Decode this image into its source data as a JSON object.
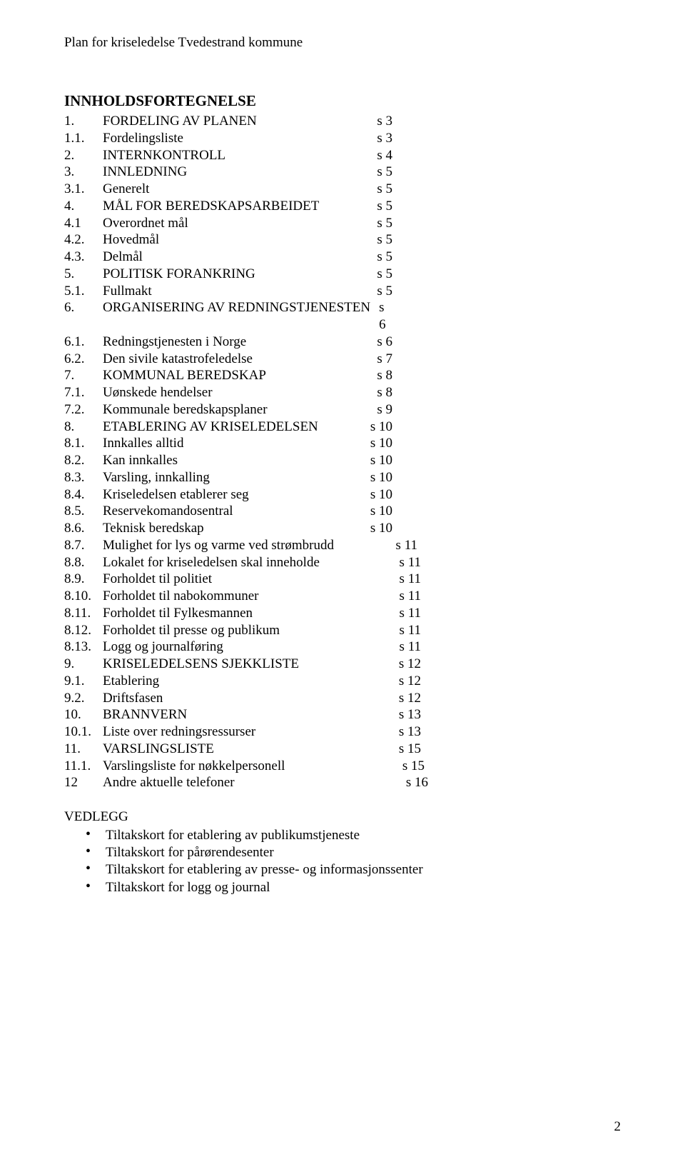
{
  "header": {
    "title": "Plan for kriseledelse Tvedestrand kommune"
  },
  "heading": "INNHOLDSFORTEGNELSE",
  "toc": [
    {
      "num": "1.",
      "label": "FORDELING AV PLANEN",
      "page": "s  3",
      "col": "a"
    },
    {
      "num": "1.1.",
      "label": "Fordelingsliste",
      "page": "s  3",
      "col": "a"
    },
    {
      "num": "2.",
      "label": "INTERNKONTROLL",
      "page": "s  4",
      "col": "a"
    },
    {
      "num": "3.",
      "label": "INNLEDNING",
      "page": "s  5",
      "col": "a"
    },
    {
      "num": "3.1.",
      "label": "Generelt",
      "page": "s  5",
      "col": "a"
    },
    {
      "num": "4.",
      "label": "MÅL FOR BEREDSKAPSARBEIDET",
      "page": "s  5",
      "col": "a"
    },
    {
      "num": "4.1",
      "label": "Overordnet mål",
      "page": "s  5",
      "col": "a"
    },
    {
      "num": "4.2.",
      "label": "Hovedmål",
      "page": "s  5",
      "col": "a"
    },
    {
      "num": "4.3.",
      "label": "Delmål",
      "page": "s  5",
      "col": "a"
    },
    {
      "num": "5.",
      "label": "POLITISK FORANKRING",
      "page": "s  5",
      "col": "a"
    },
    {
      "num": "5.1.",
      "label": "Fullmakt",
      "page": "s  5",
      "col": "a"
    },
    {
      "num": "6.",
      "label": "ORGANISERING AV REDNINGSTJENESTEN",
      "page": "s  6",
      "col": "a"
    },
    {
      "num": "6.1.",
      "label": "Redningstjenesten i Norge",
      "page": "s  6",
      "col": "a"
    },
    {
      "num": "6.2.",
      "label": "Den sivile katastrofeledelse",
      "page": "s  7",
      "col": "a"
    },
    {
      "num": "7.",
      "label": "KOMMUNAL BEREDSKAP",
      "page": "s  8",
      "col": "a"
    },
    {
      "num": "7.1.",
      "label": "Uønskede hendelser",
      "page": "s  8",
      "col": "a"
    },
    {
      "num": "7.2.",
      "label": "Kommunale beredskapsplaner",
      "page": "s  9",
      "col": "a"
    },
    {
      "num": "8.",
      "label": "ETABLERING AV KRISELEDELSEN",
      "page": "s 10",
      "col": "a"
    },
    {
      "num": "8.1.",
      "label": "Innkalles alltid",
      "page": "s 10",
      "col": "a"
    },
    {
      "num": "8.2.",
      "label": "Kan innkalles",
      "page": "s 10",
      "col": "a"
    },
    {
      "num": "8.3.",
      "label": "Varsling, innkalling",
      "page": "s 10",
      "col": "a"
    },
    {
      "num": "8.4.",
      "label": "Kriseledelsen etablerer seg",
      "page": "s 10",
      "col": "a"
    },
    {
      "num": "8.5.",
      "label": "Reservekomandosentral",
      "page": "s 10",
      "col": "a"
    },
    {
      "num": "8.6.",
      "label": "Teknisk beredskap",
      "page": "s 10",
      "col": "a"
    },
    {
      "num": "8.7.",
      "label": "Mulighet for lys og varme ved strømbrudd",
      "page": "s 11",
      "col": "b"
    },
    {
      "num": "8.8.",
      "label": "Lokalet for kriseledelsen skal inneholde",
      "page": "s 11",
      "col": "c"
    },
    {
      "num": "8.9.",
      "label": "Forholdet til politiet",
      "page": "s 11",
      "col": "c"
    },
    {
      "num": "8.10.",
      "label": "Forholdet til nabokommuner",
      "page": "s 11",
      "col": "c"
    },
    {
      "num": "8.11.",
      "label": "Forholdet til Fylkesmannen",
      "page": "s 11",
      "col": "c"
    },
    {
      "num": "8.12.",
      "label": "Forholdet til presse og publikum",
      "page": "s 11",
      "col": "c"
    },
    {
      "num": "8.13.",
      "label": "Logg og journalføring",
      "page": "s 11",
      "col": "c"
    },
    {
      "num": "9.",
      "label": "KRISELEDELSENS SJEKKLISTE",
      "page": "s 12",
      "col": "c"
    },
    {
      "num": "9.1.",
      "label": "Etablering",
      "page": "s 12",
      "col": "c"
    },
    {
      "num": "9.2.",
      "label": "Driftsfasen",
      "page": "s 12",
      "col": "c"
    },
    {
      "num": "10.",
      "label": "BRANNVERN",
      "page": "s 13",
      "col": "c"
    },
    {
      "num": "10.1.",
      "label": "Liste over redningsressurser",
      "page": "s 13",
      "col": "c"
    },
    {
      "num": "11.",
      "label": "VARSLINGSLISTE",
      "page": "s 15",
      "col": "c"
    },
    {
      "num": "11.1.",
      "label": "Varslingsliste for nøkkelpersonell",
      "page": "s 15",
      "col": "d"
    },
    {
      "num": "12",
      "label": "Andre aktuelle telefoner",
      "page": "s 16",
      "col": "e"
    }
  ],
  "vedlegg": {
    "heading": "VEDLEGG",
    "items": [
      "Tiltakskort for etablering av publikumstjeneste",
      "Tiltakskort for pårørendesenter",
      "Tiltakskort for etablering av presse- og informasjonssenter",
      "Tiltakskort for logg og journal"
    ]
  },
  "page_number": "2"
}
